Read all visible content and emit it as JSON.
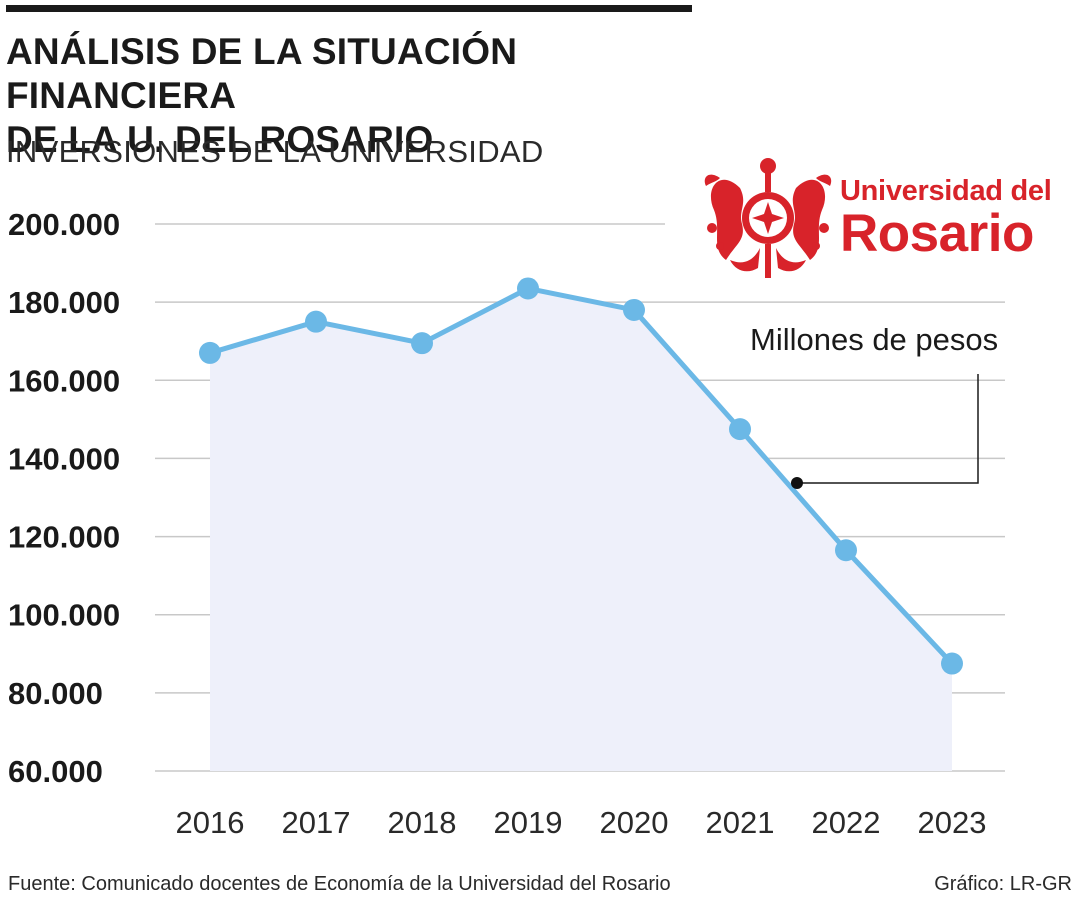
{
  "header": {
    "title_line1": "ANÁLISIS DE LA SITUACIÓN FINANCIERA",
    "title_line2": "DE LA U. DEL ROSARIO",
    "subtitle": "INVERSIONES DE LA UNIVERSIDAD"
  },
  "logo": {
    "line1": "Universidad del",
    "line2": "Rosario",
    "color": "#d8232a",
    "icon": "university-seal-icon"
  },
  "annotation": {
    "unit_label": "Millones de pesos"
  },
  "footer": {
    "source": "Fuente: Comunicado docentes de Economía de la Universidad del Rosario",
    "credit": "Gráfico: LR-GR"
  },
  "chart_data": {
    "type": "area",
    "x": [
      "2016",
      "2017",
      "2018",
      "2019",
      "2020",
      "2021",
      "2022",
      "2023"
    ],
    "series": [
      {
        "values": [
          167000,
          175000,
          169500,
          183500,
          178000,
          147500,
          116500,
          87500
        ]
      }
    ],
    "ylim": [
      60000,
      200000
    ],
    "yticks": [
      200000,
      180000,
      160000,
      140000,
      120000,
      100000,
      80000,
      60000
    ],
    "ytick_labels": [
      "200.000",
      "180.000",
      "160.000",
      "140.000",
      "120.000",
      "100.000",
      "80.000",
      "60.000"
    ],
    "grid": true,
    "line_color": "#6bb8e6",
    "fill_color": "#eef0fa"
  }
}
